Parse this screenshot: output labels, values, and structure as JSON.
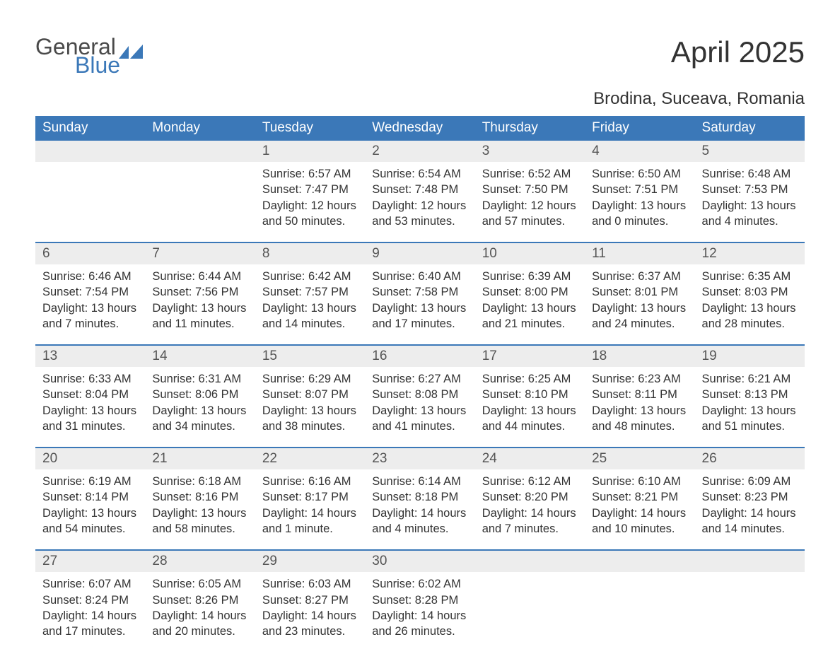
{
  "logo": {
    "text_general": "General",
    "text_blue": "Blue",
    "shape_color": "#3b78b8",
    "general_color": "#4a4a4a"
  },
  "title": "April 2025",
  "location": "Brodina, Suceava, Romania",
  "colors": {
    "header_bg": "#3b78b8",
    "header_text": "#ffffff",
    "daynum_bg": "#ededed",
    "daynum_text": "#555555",
    "body_text": "#333333",
    "separator": "#3b78b8",
    "page_bg": "#ffffff"
  },
  "fonts": {
    "title_size": 42,
    "location_size": 24,
    "dayheader_size": 19,
    "daynum_size": 19,
    "cell_size": 16.5
  },
  "day_headers": [
    "Sunday",
    "Monday",
    "Tuesday",
    "Wednesday",
    "Thursday",
    "Friday",
    "Saturday"
  ],
  "weeks": [
    {
      "nums": [
        "",
        "",
        "1",
        "2",
        "3",
        "4",
        "5"
      ],
      "cells": [
        {
          "lines": []
        },
        {
          "lines": []
        },
        {
          "lines": [
            "Sunrise: 6:57 AM",
            "Sunset: 7:47 PM",
            "Daylight: 12 hours",
            "and 50 minutes."
          ]
        },
        {
          "lines": [
            "Sunrise: 6:54 AM",
            "Sunset: 7:48 PM",
            "Daylight: 12 hours",
            "and 53 minutes."
          ]
        },
        {
          "lines": [
            "Sunrise: 6:52 AM",
            "Sunset: 7:50 PM",
            "Daylight: 12 hours",
            "and 57 minutes."
          ]
        },
        {
          "lines": [
            "Sunrise: 6:50 AM",
            "Sunset: 7:51 PM",
            "Daylight: 13 hours",
            "and 0 minutes."
          ]
        },
        {
          "lines": [
            "Sunrise: 6:48 AM",
            "Sunset: 7:53 PM",
            "Daylight: 13 hours",
            "and 4 minutes."
          ]
        }
      ]
    },
    {
      "nums": [
        "6",
        "7",
        "8",
        "9",
        "10",
        "11",
        "12"
      ],
      "cells": [
        {
          "lines": [
            "Sunrise: 6:46 AM",
            "Sunset: 7:54 PM",
            "Daylight: 13 hours",
            "and 7 minutes."
          ]
        },
        {
          "lines": [
            "Sunrise: 6:44 AM",
            "Sunset: 7:56 PM",
            "Daylight: 13 hours",
            "and 11 minutes."
          ]
        },
        {
          "lines": [
            "Sunrise: 6:42 AM",
            "Sunset: 7:57 PM",
            "Daylight: 13 hours",
            "and 14 minutes."
          ]
        },
        {
          "lines": [
            "Sunrise: 6:40 AM",
            "Sunset: 7:58 PM",
            "Daylight: 13 hours",
            "and 17 minutes."
          ]
        },
        {
          "lines": [
            "Sunrise: 6:39 AM",
            "Sunset: 8:00 PM",
            "Daylight: 13 hours",
            "and 21 minutes."
          ]
        },
        {
          "lines": [
            "Sunrise: 6:37 AM",
            "Sunset: 8:01 PM",
            "Daylight: 13 hours",
            "and 24 minutes."
          ]
        },
        {
          "lines": [
            "Sunrise: 6:35 AM",
            "Sunset: 8:03 PM",
            "Daylight: 13 hours",
            "and 28 minutes."
          ]
        }
      ]
    },
    {
      "nums": [
        "13",
        "14",
        "15",
        "16",
        "17",
        "18",
        "19"
      ],
      "cells": [
        {
          "lines": [
            "Sunrise: 6:33 AM",
            "Sunset: 8:04 PM",
            "Daylight: 13 hours",
            "and 31 minutes."
          ]
        },
        {
          "lines": [
            "Sunrise: 6:31 AM",
            "Sunset: 8:06 PM",
            "Daylight: 13 hours",
            "and 34 minutes."
          ]
        },
        {
          "lines": [
            "Sunrise: 6:29 AM",
            "Sunset: 8:07 PM",
            "Daylight: 13 hours",
            "and 38 minutes."
          ]
        },
        {
          "lines": [
            "Sunrise: 6:27 AM",
            "Sunset: 8:08 PM",
            "Daylight: 13 hours",
            "and 41 minutes."
          ]
        },
        {
          "lines": [
            "Sunrise: 6:25 AM",
            "Sunset: 8:10 PM",
            "Daylight: 13 hours",
            "and 44 minutes."
          ]
        },
        {
          "lines": [
            "Sunrise: 6:23 AM",
            "Sunset: 8:11 PM",
            "Daylight: 13 hours",
            "and 48 minutes."
          ]
        },
        {
          "lines": [
            "Sunrise: 6:21 AM",
            "Sunset: 8:13 PM",
            "Daylight: 13 hours",
            "and 51 minutes."
          ]
        }
      ]
    },
    {
      "nums": [
        "20",
        "21",
        "22",
        "23",
        "24",
        "25",
        "26"
      ],
      "cells": [
        {
          "lines": [
            "Sunrise: 6:19 AM",
            "Sunset: 8:14 PM",
            "Daylight: 13 hours",
            "and 54 minutes."
          ]
        },
        {
          "lines": [
            "Sunrise: 6:18 AM",
            "Sunset: 8:16 PM",
            "Daylight: 13 hours",
            "and 58 minutes."
          ]
        },
        {
          "lines": [
            "Sunrise: 6:16 AM",
            "Sunset: 8:17 PM",
            "Daylight: 14 hours",
            "and 1 minute."
          ]
        },
        {
          "lines": [
            "Sunrise: 6:14 AM",
            "Sunset: 8:18 PM",
            "Daylight: 14 hours",
            "and 4 minutes."
          ]
        },
        {
          "lines": [
            "Sunrise: 6:12 AM",
            "Sunset: 8:20 PM",
            "Daylight: 14 hours",
            "and 7 minutes."
          ]
        },
        {
          "lines": [
            "Sunrise: 6:10 AM",
            "Sunset: 8:21 PM",
            "Daylight: 14 hours",
            "and 10 minutes."
          ]
        },
        {
          "lines": [
            "Sunrise: 6:09 AM",
            "Sunset: 8:23 PM",
            "Daylight: 14 hours",
            "and 14 minutes."
          ]
        }
      ]
    },
    {
      "nums": [
        "27",
        "28",
        "29",
        "30",
        "",
        "",
        ""
      ],
      "cells": [
        {
          "lines": [
            "Sunrise: 6:07 AM",
            "Sunset: 8:24 PM",
            "Daylight: 14 hours",
            "and 17 minutes."
          ]
        },
        {
          "lines": [
            "Sunrise: 6:05 AM",
            "Sunset: 8:26 PM",
            "Daylight: 14 hours",
            "and 20 minutes."
          ]
        },
        {
          "lines": [
            "Sunrise: 6:03 AM",
            "Sunset: 8:27 PM",
            "Daylight: 14 hours",
            "and 23 minutes."
          ]
        },
        {
          "lines": [
            "Sunrise: 6:02 AM",
            "Sunset: 8:28 PM",
            "Daylight: 14 hours",
            "and 26 minutes."
          ]
        },
        {
          "lines": []
        },
        {
          "lines": []
        },
        {
          "lines": []
        }
      ]
    }
  ]
}
